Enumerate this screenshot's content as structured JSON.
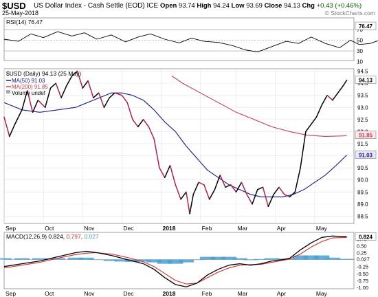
{
  "header": {
    "symbol": "$USD",
    "name": "US Dollar Index - Cash Settle (EOD)",
    "exchange": "ICE",
    "date": "25-May-2018",
    "open_label": "Open",
    "open": "93.74",
    "high_label": "High",
    "high": "94.24",
    "low_label": "Low",
    "low": "93.69",
    "close_label": "Close",
    "close": "94.13",
    "chg_label": "Chg",
    "chg": "+0.43 (+0.46%)",
    "watermark": "© StockCharts.com"
  },
  "chart_data": [
    {
      "type": "line",
      "title": "RSI(14) 76.47",
      "ylim": [
        12,
        92
      ],
      "yticks": [
        70,
        50,
        30,
        10
      ],
      "reference_lines": [
        70,
        50,
        30
      ],
      "last_value": 76.47,
      "series": [
        {
          "name": "RSI(14)",
          "color": "#000000",
          "x": [
            0,
            8,
            15,
            22,
            30,
            38,
            45,
            52,
            60,
            68,
            75,
            82,
            90,
            98,
            105,
            112,
            120,
            128,
            135,
            142,
            150,
            158,
            165,
            172,
            180,
            188,
            194,
            199,
            205,
            212,
            220,
            228,
            236,
            242
          ],
          "values": [
            52,
            48,
            62,
            55,
            66,
            58,
            64,
            52,
            60,
            47,
            56,
            62,
            52,
            45,
            54,
            48,
            46,
            40,
            32,
            28,
            38,
            48,
            44,
            56,
            44,
            36,
            50,
            42,
            44,
            52,
            64,
            72,
            78,
            76.47
          ]
        }
      ]
    },
    {
      "type": "line",
      "title": "$USD (Daily) 94.13 (25 May)",
      "ylim": [
        88.2,
        94.6
      ],
      "yticks": [
        88.5,
        89.0,
        89.5,
        90.0,
        90.5,
        91.0,
        91.5,
        92.0,
        92.5,
        93.0,
        93.5,
        94.0,
        94.5
      ],
      "x_labels": [
        {
          "label": "Sep",
          "x": 0
        },
        {
          "label": "Oct",
          "x": 22
        },
        {
          "label": "Nov",
          "x": 44
        },
        {
          "label": "Dec",
          "x": 66
        },
        {
          "label": "2018",
          "x": 88
        },
        {
          "label": "Feb",
          "x": 110
        },
        {
          "label": "Mar",
          "x": 130
        },
        {
          "label": "Apr",
          "x": 152
        },
        {
          "label": "May",
          "x": 174
        }
      ],
      "legend": [
        "$USD (Daily) 94.13 (25 May)",
        "MA(50) 91.03",
        "MA(200) 91.85",
        "Volume undef"
      ],
      "series": [
        {
          "name": "$USD (Daily)",
          "color": "#000000",
          "last": 94.13,
          "x": [
            0,
            3,
            6,
            10,
            13,
            16,
            19,
            23,
            26,
            29,
            32,
            35,
            38,
            41,
            44,
            47,
            50,
            53,
            56,
            59,
            62,
            66,
            69,
            72,
            75,
            78,
            81,
            84,
            87,
            90,
            93,
            96,
            99,
            102,
            104,
            106,
            109,
            112,
            115,
            118,
            121,
            124,
            127,
            130,
            133,
            136,
            139,
            142,
            145,
            148,
            151,
            154,
            157,
            160,
            163,
            166,
            169,
            172,
            175,
            178,
            181,
            184,
            187,
            190,
            192
          ],
          "values": [
            92.6,
            91.8,
            92.3,
            92.9,
            93.7,
            92.8,
            93.3,
            93.0,
            93.8,
            94.0,
            93.4,
            93.9,
            94.3,
            94.5,
            93.8,
            94.1,
            93.4,
            93.6,
            93.0,
            93.4,
            93.6,
            93.5,
            93.2,
            92.5,
            92.2,
            92.5,
            92.2,
            91.7,
            90.5,
            90.1,
            90.6,
            89.8,
            89.2,
            89.5,
            88.6,
            89.4,
            89.9,
            89.8,
            89.2,
            89.6,
            90.2,
            89.7,
            89.8,
            89.5,
            89.9,
            89.4,
            89.0,
            89.6,
            89.7,
            88.9,
            89.4,
            89.7,
            89.4,
            89.3,
            89.5,
            90.5,
            92.0,
            92.3,
            92.6,
            93.1,
            93.5,
            93.3,
            93.6,
            93.9,
            94.13
          ]
        },
        {
          "name": "MA(50)",
          "color": "#1a1a80",
          "last": 91.03,
          "x": [
            0,
            10,
            20,
            30,
            40,
            50,
            60,
            66,
            72,
            78,
            84,
            90,
            96,
            102,
            108,
            114,
            120,
            126,
            132,
            138,
            144,
            150,
            156,
            162,
            168,
            174,
            180,
            186,
            192
          ],
          "values": [
            93.2,
            92.9,
            92.8,
            92.9,
            93.0,
            93.3,
            93.6,
            93.6,
            93.5,
            93.3,
            92.9,
            92.4,
            92.0,
            91.4,
            90.9,
            90.4,
            90.1,
            89.8,
            89.6,
            89.4,
            89.3,
            89.3,
            89.3,
            89.4,
            89.6,
            89.9,
            90.2,
            90.6,
            91.03
          ]
        },
        {
          "name": "MA(200)",
          "color": "#c04050",
          "last": 91.85,
          "x": [
            94,
            100,
            110,
            120,
            130,
            140,
            150,
            160,
            170,
            180,
            190,
            192
          ],
          "values": [
            94.3,
            94.0,
            93.6,
            93.2,
            92.8,
            92.5,
            92.2,
            92.0,
            91.85,
            91.8,
            91.82,
            91.85
          ]
        }
      ]
    },
    {
      "type": "line",
      "title": "MACD(12,26,9) 0.824, 0.797, 0.027",
      "ylim": [
        -1.05,
        0.98
      ],
      "yticks": [
        0.75,
        0.5,
        0.25,
        0.027,
        -0.25,
        -0.5,
        -0.75,
        -1.0
      ],
      "tick_labels": [
        "0.75",
        "0.50",
        "0.25",
        "0.027",
        "-0.25",
        "-0.50",
        "-0.75",
        "-1.00"
      ],
      "badge": "0.824",
      "series": [
        {
          "name": "MACD(12,26,9)",
          "color": "#000000",
          "last": 0.824,
          "x": [
            0,
            10,
            20,
            30,
            40,
            46,
            52,
            60,
            66,
            72,
            78,
            84,
            90,
            96,
            102,
            108,
            114,
            120,
            126,
            132,
            138,
            144,
            150,
            156,
            160,
            166,
            172,
            178,
            184,
            192
          ],
          "values": [
            -0.25,
            -0.15,
            -0.05,
            0.1,
            0.25,
            0.3,
            0.25,
            0.15,
            0.05,
            -0.05,
            -0.15,
            -0.35,
            -0.65,
            -0.9,
            -0.98,
            -0.85,
            -0.55,
            -0.35,
            -0.2,
            -0.15,
            -0.2,
            -0.15,
            -0.05,
            0.0,
            0.05,
            0.35,
            0.6,
            0.8,
            0.85,
            0.824
          ]
        },
        {
          "name": "Signal",
          "color": "#d03030",
          "last": 0.797,
          "x": [
            0,
            10,
            20,
            30,
            40,
            46,
            52,
            60,
            66,
            72,
            78,
            84,
            90,
            96,
            102,
            108,
            114,
            120,
            126,
            132,
            138,
            144,
            150,
            156,
            160,
            166,
            172,
            178,
            184,
            192
          ],
          "values": [
            -0.3,
            -0.2,
            -0.1,
            0.05,
            0.18,
            0.23,
            0.25,
            0.2,
            0.12,
            0.03,
            -0.08,
            -0.25,
            -0.5,
            -0.75,
            -0.88,
            -0.85,
            -0.65,
            -0.45,
            -0.3,
            -0.2,
            -0.18,
            -0.17,
            -0.1,
            -0.03,
            0.02,
            0.2,
            0.45,
            0.65,
            0.78,
            0.797
          ]
        },
        {
          "name": "Histogram",
          "color": "#4a9fd0",
          "last": 0.027,
          "x": [
            0,
            10,
            20,
            30,
            40,
            46,
            52,
            60,
            66,
            72,
            78,
            84,
            90,
            96,
            102,
            108,
            114,
            120,
            126,
            132,
            138,
            144,
            150,
            156,
            160,
            166,
            172,
            178,
            184,
            192
          ],
          "values": [
            0.05,
            0.05,
            0.05,
            0.05,
            0.07,
            0.07,
            0.0,
            -0.05,
            -0.07,
            -0.08,
            -0.07,
            -0.1,
            -0.15,
            -0.15,
            -0.1,
            0.0,
            0.1,
            0.1,
            0.1,
            0.05,
            -0.02,
            0.02,
            0.05,
            0.03,
            0.03,
            0.15,
            0.15,
            0.15,
            0.07,
            0.027
          ]
        }
      ]
    }
  ]
}
